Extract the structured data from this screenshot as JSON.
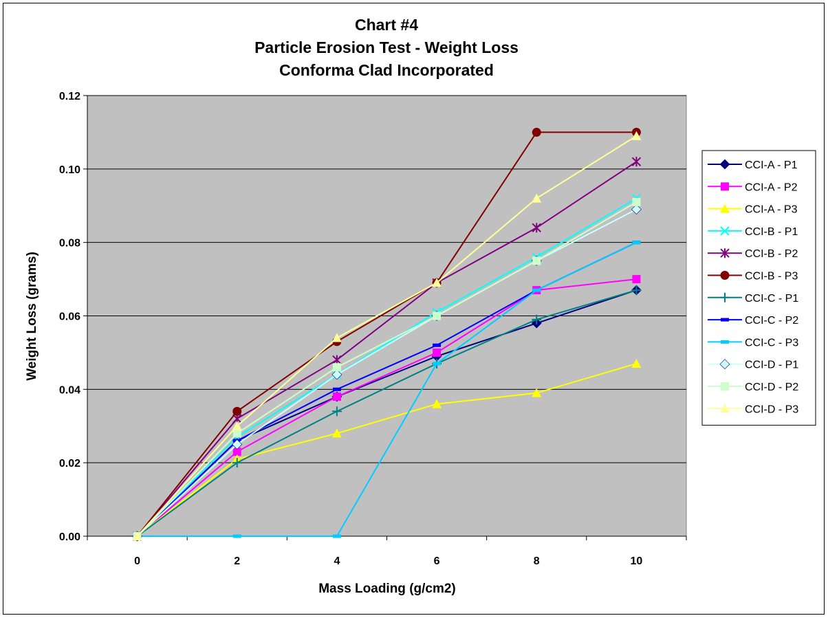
{
  "chart_data": {
    "type": "line",
    "title": [
      "Chart #4",
      "Particle Erosion Test - Weight Loss",
      "Conforma Clad Incorporated"
    ],
    "xlabel": "Mass Loading (g/cm2)",
    "ylabel": "Weight Loss (grams)",
    "x": [
      0,
      2,
      4,
      6,
      8,
      10
    ],
    "x_tick_labels": [
      "0",
      "2",
      "4",
      "6",
      "8",
      "10"
    ],
    "ylim": [
      0,
      0.12
    ],
    "y_ticks": [
      0,
      0.02,
      0.04,
      0.06,
      0.08,
      0.1,
      0.12
    ],
    "y_tick_labels": [
      "0.00",
      "0.02",
      "0.04",
      "0.06",
      "0.08",
      "0.10",
      "0.12"
    ],
    "grid": "horizontal",
    "plot_background": "#c0c0c0",
    "legend_position": "right",
    "series": [
      {
        "name": "CCI-A - P1",
        "color": "#000080",
        "marker": "diamond",
        "values": [
          0,
          0.026,
          0.038,
          0.049,
          0.058,
          0.067
        ]
      },
      {
        "name": "CCI-A - P2",
        "color": "#ff00ff",
        "marker": "square",
        "values": [
          0,
          0.023,
          0.038,
          0.05,
          0.067,
          0.07
        ]
      },
      {
        "name": "CCI-A - P3",
        "color": "#ffff00",
        "marker": "triangle",
        "values": [
          0,
          0.021,
          0.028,
          0.036,
          0.039,
          0.047
        ]
      },
      {
        "name": "CCI-B - P1",
        "color": "#00ffff",
        "marker": "x",
        "values": [
          0,
          0.027,
          0.044,
          0.061,
          0.076,
          0.092
        ]
      },
      {
        "name": "CCI-B - P2",
        "color": "#800080",
        "marker": "star",
        "values": [
          0,
          0.032,
          0.048,
          0.069,
          0.084,
          0.102
        ]
      },
      {
        "name": "CCI-B - P3",
        "color": "#800000",
        "marker": "circle",
        "values": [
          0,
          0.034,
          0.053,
          0.069,
          0.11,
          0.11
        ]
      },
      {
        "name": "CCI-C - P1",
        "color": "#008080",
        "marker": "plus",
        "values": [
          0,
          0.02,
          0.034,
          0.047,
          0.059,
          0.067
        ]
      },
      {
        "name": "CCI-C - P2",
        "color": "#0000ff",
        "marker": "dash",
        "values": [
          0,
          0.026,
          0.04,
          0.052,
          0.067,
          0.08
        ]
      },
      {
        "name": "CCI-C - P3",
        "color": "#00ccff",
        "marker": "dash",
        "values": [
          0,
          0.0,
          0.0,
          0.047,
          0.067,
          0.08
        ]
      },
      {
        "name": "CCI-D - P1",
        "color": "#ccffff",
        "marker": "diamond",
        "values": [
          0,
          0.025,
          0.044,
          0.06,
          0.075,
          0.089
        ]
      },
      {
        "name": "CCI-D - P2",
        "color": "#ccffcc",
        "marker": "square",
        "values": [
          0,
          0.028,
          0.046,
          0.06,
          0.075,
          0.091
        ]
      },
      {
        "name": "CCI-D - P3",
        "color": "#ffff99",
        "marker": "triangle",
        "values": [
          0,
          0.03,
          0.054,
          0.069,
          0.092,
          0.109
        ]
      }
    ]
  }
}
